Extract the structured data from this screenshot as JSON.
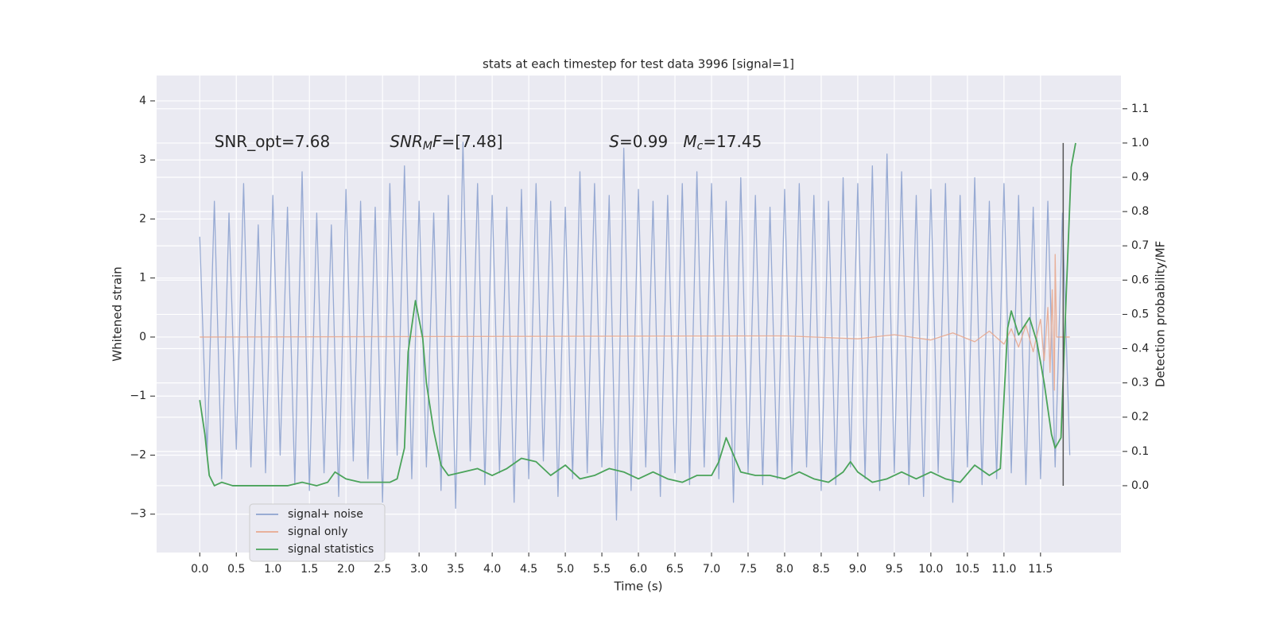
{
  "chart_data": {
    "type": "line",
    "title": "stats at each timestep for test data 3996 [signal=1]",
    "x_label": "Time (s)",
    "y_label": "Whitened strain",
    "y2_label": "Detection probability/MF",
    "xlim": [
      -0.59,
      12.6
    ],
    "ylim": [
      -3.65,
      4.43
    ],
    "y2lim": [
      -0.195,
      1.197
    ],
    "xticks": [
      {
        "value": 0,
        "label": "0.0"
      },
      {
        "value": 0.5,
        "label": "0.5"
      },
      {
        "value": 1,
        "label": "1.0"
      },
      {
        "value": 1.5,
        "label": "1.5"
      },
      {
        "value": 2,
        "label": "2.0"
      },
      {
        "value": 2.5,
        "label": "2.5"
      },
      {
        "value": 3,
        "label": "3.0"
      },
      {
        "value": 3.5,
        "label": "3.5"
      },
      {
        "value": 4,
        "label": "4.0"
      },
      {
        "value": 4.5,
        "label": "4.5"
      },
      {
        "value": 5,
        "label": "5.0"
      },
      {
        "value": 5.5,
        "label": "5.5"
      },
      {
        "value": 6,
        "label": "6.0"
      },
      {
        "value": 6.5,
        "label": "6.5"
      },
      {
        "value": 7,
        "label": "7.0"
      },
      {
        "value": 7.5,
        "label": "7.5"
      },
      {
        "value": 8,
        "label": "8.0"
      },
      {
        "value": 8.5,
        "label": "8.5"
      },
      {
        "value": 9,
        "label": "9.0"
      },
      {
        "value": 9.5,
        "label": "9.5"
      },
      {
        "value": 10,
        "label": "10.0"
      },
      {
        "value": 10.5,
        "label": "10.5"
      },
      {
        "value": 11,
        "label": "11.0"
      },
      {
        "value": 11.5,
        "label": "11.5"
      }
    ],
    "yticks": [
      {
        "value": -3,
        "label": "−3"
      },
      {
        "value": -2,
        "label": "−2"
      },
      {
        "value": -1,
        "label": "−1"
      },
      0,
      1,
      2,
      3,
      4
    ],
    "y2ticks": [
      {
        "value": 0,
        "label": "0.0"
      },
      {
        "value": 0.1,
        "label": "0.1"
      },
      {
        "value": 0.2,
        "label": "0.2"
      },
      {
        "value": 0.3,
        "label": "0.3"
      },
      {
        "value": 0.4,
        "label": "0.4"
      },
      {
        "value": 0.5,
        "label": "0.5"
      },
      {
        "value": 0.6,
        "label": "0.6"
      },
      {
        "value": 0.7,
        "label": "0.7"
      },
      {
        "value": 0.8,
        "label": "0.8"
      },
      {
        "value": 0.9,
        "label": "0.9"
      },
      {
        "value": 1,
        "label": "1.0"
      },
      {
        "value": 1.1,
        "label": "1.1"
      }
    ],
    "grid": true,
    "series": [
      {
        "name": "signal+ noise",
        "color": "#8ea3cf",
        "x": [
          0.0,
          0.1,
          0.2,
          0.3,
          0.4,
          0.5,
          0.6,
          0.7,
          0.8,
          0.9,
          1.0,
          1.1,
          1.2,
          1.3,
          1.4,
          1.5,
          1.6,
          1.7,
          1.8,
          1.9,
          2.0,
          2.1,
          2.2,
          2.3,
          2.4,
          2.5,
          2.6,
          2.7,
          2.8,
          2.9,
          3.0,
          3.1,
          3.2,
          3.3,
          3.4,
          3.5,
          3.6,
          3.7,
          3.8,
          3.9,
          4.0,
          4.1,
          4.2,
          4.3,
          4.4,
          4.5,
          4.6,
          4.7,
          4.8,
          4.9,
          5.0,
          5.1,
          5.2,
          5.3,
          5.4,
          5.5,
          5.6,
          5.7,
          5.8,
          5.9,
          6.0,
          6.1,
          6.2,
          6.3,
          6.4,
          6.5,
          6.6,
          6.7,
          6.8,
          6.9,
          7.0,
          7.1,
          7.2,
          7.3,
          7.4,
          7.5,
          7.6,
          7.7,
          7.8,
          7.9,
          8.0,
          8.1,
          8.2,
          8.3,
          8.4,
          8.5,
          8.6,
          8.7,
          8.8,
          8.9,
          9.0,
          9.1,
          9.2,
          9.3,
          9.4,
          9.5,
          9.6,
          9.7,
          9.8,
          9.9,
          10.0,
          10.1,
          10.2,
          10.3,
          10.4,
          10.5,
          10.6,
          10.7,
          10.8,
          10.9,
          11.0,
          11.1,
          11.2,
          11.3,
          11.4,
          11.5,
          11.6,
          11.7,
          11.8,
          11.9
        ],
        "values": [
          1.7,
          -2.0,
          2.3,
          -2.4,
          2.1,
          -1.9,
          2.6,
          -2.2,
          1.9,
          -2.3,
          2.4,
          -2.0,
          2.2,
          -2.5,
          2.8,
          -2.6,
          2.1,
          -2.3,
          1.9,
          -2.7,
          2.5,
          -2.1,
          2.3,
          -2.4,
          2.2,
          -2.8,
          2.6,
          -2.0,
          2.9,
          -2.4,
          2.3,
          -2.2,
          2.1,
          -2.6,
          2.4,
          -2.9,
          3.3,
          -2.1,
          2.6,
          -2.5,
          2.4,
          -2.3,
          2.2,
          -2.8,
          2.5,
          -2.4,
          2.6,
          -2.1,
          2.3,
          -2.7,
          2.2,
          -2.4,
          2.8,
          -2.3,
          2.6,
          -2.2,
          2.4,
          -3.1,
          3.2,
          -2.6,
          2.5,
          -2.2,
          2.3,
          -2.7,
          2.4,
          -2.3,
          2.6,
          -2.5,
          2.8,
          -2.2,
          2.6,
          -2.4,
          2.3,
          -2.8,
          2.7,
          -2.3,
          2.4,
          -2.5,
          2.2,
          -2.4,
          2.5,
          -2.3,
          2.6,
          -2.2,
          2.4,
          -2.6,
          2.3,
          -2.5,
          2.7,
          -2.2,
          2.6,
          -2.4,
          2.9,
          -2.6,
          3.1,
          -2.3,
          2.8,
          -2.5,
          2.4,
          -2.7,
          2.5,
          -2.3,
          2.6,
          -2.8,
          2.4,
          -2.2,
          2.7,
          -2.5,
          2.3,
          -2.4,
          2.6,
          -2.3,
          2.4,
          -2.5,
          2.2,
          -2.4,
          2.3,
          -2.2,
          2.1,
          -2.0
        ]
      },
      {
        "name": "signal only",
        "color": "#e8a98f",
        "x": [
          0.0,
          8.0,
          9.0,
          9.5,
          10.0,
          10.3,
          10.6,
          10.8,
          11.0,
          11.1,
          11.2,
          11.3,
          11.4,
          11.5,
          11.55,
          11.6,
          11.63,
          11.66,
          11.69,
          11.7,
          11.72,
          11.9
        ],
        "values": [
          0,
          0.02,
          -0.03,
          0.04,
          -0.05,
          0.07,
          -0.08,
          0.1,
          -0.12,
          0.14,
          -0.17,
          0.2,
          -0.25,
          0.3,
          -0.4,
          0.5,
          -0.6,
          0.8,
          -0.9,
          1.4,
          0,
          0
        ]
      },
      {
        "name": "signal statistics",
        "color": "#4aa35a",
        "axis": "y2",
        "x": [
          0.0,
          0.07,
          0.13,
          0.2,
          0.3,
          0.45,
          0.6,
          0.8,
          1.0,
          1.2,
          1.4,
          1.6,
          1.75,
          1.85,
          2.0,
          2.2,
          2.4,
          2.6,
          2.7,
          2.8,
          2.85,
          2.95,
          3.05,
          3.1,
          3.2,
          3.3,
          3.4,
          3.6,
          3.8,
          4.0,
          4.2,
          4.4,
          4.6,
          4.8,
          5.0,
          5.2,
          5.4,
          5.6,
          5.8,
          6.0,
          6.2,
          6.4,
          6.6,
          6.8,
          7.0,
          7.1,
          7.2,
          7.3,
          7.4,
          7.6,
          7.8,
          8.0,
          8.2,
          8.4,
          8.6,
          8.8,
          8.9,
          9.0,
          9.2,
          9.4,
          9.6,
          9.8,
          10.0,
          10.2,
          10.4,
          10.6,
          10.8,
          10.95,
          11.05,
          11.1,
          11.2,
          11.35,
          11.45,
          11.55,
          11.65,
          11.7,
          11.78,
          11.85,
          11.92,
          11.98
        ],
        "values": [
          0.25,
          0.15,
          0.03,
          0.0,
          0.01,
          0.0,
          0.0,
          0.0,
          0.0,
          0.0,
          0.01,
          0.0,
          0.01,
          0.04,
          0.02,
          0.01,
          0.01,
          0.01,
          0.02,
          0.11,
          0.39,
          0.54,
          0.43,
          0.3,
          0.16,
          0.06,
          0.03,
          0.04,
          0.05,
          0.03,
          0.05,
          0.08,
          0.07,
          0.03,
          0.06,
          0.02,
          0.03,
          0.05,
          0.04,
          0.02,
          0.04,
          0.02,
          0.01,
          0.03,
          0.03,
          0.07,
          0.14,
          0.09,
          0.04,
          0.03,
          0.03,
          0.02,
          0.04,
          0.02,
          0.01,
          0.04,
          0.07,
          0.04,
          0.01,
          0.02,
          0.04,
          0.02,
          0.04,
          0.02,
          0.01,
          0.06,
          0.03,
          0.05,
          0.46,
          0.51,
          0.44,
          0.49,
          0.42,
          0.3,
          0.15,
          0.11,
          0.14,
          0.55,
          0.93,
          1.0
        ]
      }
    ],
    "vline": {
      "x": 11.81,
      "ymin": 0,
      "ymax": 1.0,
      "color": "#555555"
    },
    "annotations": [
      {
        "x": 0.2,
        "y": 3.3,
        "parts": [
          {
            "text": "SNR_opt=7.68"
          }
        ]
      },
      {
        "x": 2.6,
        "y": 3.3,
        "parts": [
          {
            "text": "SNR",
            "italic": true
          },
          {
            "text": "M",
            "italic": true,
            "sub": true
          },
          {
            "text": "F",
            "italic": true
          },
          {
            "text": "=[7.48]"
          }
        ]
      },
      {
        "x": 5.6,
        "y": 3.3,
        "parts": [
          {
            "text": "S",
            "italic": true
          },
          {
            "text": "=0.99   "
          },
          {
            "text": "M",
            "italic": true
          },
          {
            "text": "c",
            "italic": true,
            "sub": true
          },
          {
            "text": "=17.45"
          }
        ]
      }
    ]
  }
}
